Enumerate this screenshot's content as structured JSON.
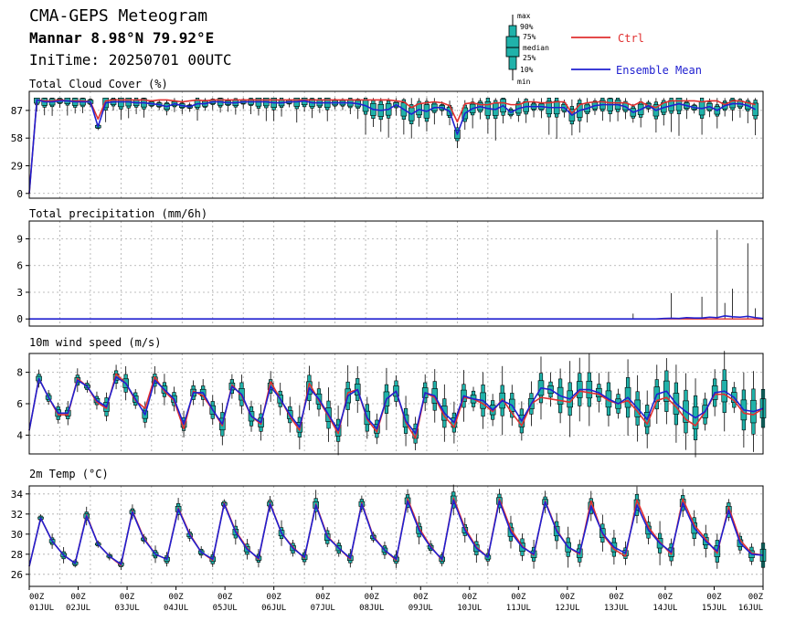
{
  "header": {
    "title": "CMA-GEPS Meteogram",
    "location": "Mannar 8.98°N 79.92°E",
    "init_time": "IniTime: 20250701 00UTC"
  },
  "legend": {
    "box_labels": [
      "max",
      "90%",
      "75%",
      "median",
      "25%",
      "10%",
      "min"
    ],
    "ctrl_label": "Ctrl",
    "ctrl_color": "#e03030",
    "mean_label": "Ensemble Mean",
    "mean_color": "#2020d0",
    "box_color": "#20b2aa"
  },
  "x_axis": {
    "hour_label": "00Z",
    "dates": [
      "01JUL",
      "02JUL",
      "03JUL",
      "04JUL",
      "05JUL",
      "06JUL",
      "07JUL",
      "08JUL",
      "09JUL",
      "10JUL",
      "11JUL",
      "12JUL",
      "13JUL",
      "14JUL",
      "15JUL",
      "16JUL"
    ]
  },
  "chart_data": [
    {
      "type": "line",
      "title": "Total Cloud Cover (%)",
      "ylim": [
        -5,
        107
      ],
      "yticks": [
        0,
        29,
        58,
        87
      ],
      "x_step_hours": 6,
      "ctrl": [
        0,
        98,
        97,
        97,
        98,
        97,
        97,
        97,
        96,
        78,
        97,
        98,
        98,
        98,
        98,
        98,
        97,
        98,
        98,
        97,
        96,
        97,
        98,
        97,
        98,
        98,
        98,
        98,
        98,
        98,
        98,
        98,
        98,
        98,
        98,
        98,
        98,
        98,
        98,
        98,
        98,
        98,
        98,
        98,
        98,
        98,
        98,
        98,
        97,
        96,
        90,
        94,
        95,
        96,
        95,
        92,
        75,
        94,
        95,
        93,
        93,
        95,
        95,
        93,
        93,
        96,
        96,
        95,
        95,
        96,
        96,
        84,
        93,
        95,
        96,
        96,
        95,
        95,
        95,
        92,
        96,
        92,
        90,
        95,
        97,
        97,
        97,
        97,
        96,
        97,
        97,
        93,
        97,
        97,
        95,
        93
      ],
      "mean": [
        0,
        98,
        96,
        96,
        97,
        97,
        96,
        96,
        96,
        70,
        95,
        96,
        96,
        96,
        95,
        95,
        94,
        93,
        91,
        94,
        92,
        91,
        94,
        94,
        96,
        96,
        95,
        95,
        96,
        96,
        96,
        96,
        95,
        95,
        96,
        96,
        97,
        95,
        95,
        95,
        95,
        95,
        95,
        94,
        92,
        88,
        87,
        88,
        93,
        88,
        83,
        88,
        86,
        90,
        90,
        86,
        62,
        84,
        89,
        91,
        89,
        88,
        92,
        85,
        89,
        91,
        91,
        91,
        90,
        90,
        90,
        82,
        87,
        89,
        92,
        93,
        93,
        93,
        91,
        85,
        88,
        92,
        87,
        90,
        92,
        94,
        92,
        90,
        89,
        91,
        87,
        92,
        94,
        94,
        92,
        88
      ]
    },
    {
      "type": "line",
      "title": "Total precipitation (mm/6h)",
      "ylim": [
        -0.8,
        11
      ],
      "yticks": [
        0,
        3,
        6,
        9
      ],
      "x_step_hours": 6,
      "ctrl_flat": 0,
      "mean_flat": 0,
      "late_mean_points": [
        [
          82,
          0
        ],
        [
          83,
          0.05
        ],
        [
          84,
          0.08
        ],
        [
          85,
          0.05
        ],
        [
          86,
          0.15
        ],
        [
          87,
          0.1
        ],
        [
          88,
          0.1
        ],
        [
          89,
          0.2
        ],
        [
          90,
          0.15
        ],
        [
          91,
          0.35
        ],
        [
          92,
          0.25
        ],
        [
          93,
          0.2
        ],
        [
          94,
          0.3
        ],
        [
          95,
          0.15
        ],
        [
          96,
          0.05
        ]
      ],
      "spikes": [
        [
          79,
          0.6
        ],
        [
          84,
          2.9
        ],
        [
          88,
          2.5
        ],
        [
          90,
          10.0
        ],
        [
          91,
          1.8
        ],
        [
          92,
          3.4
        ],
        [
          94,
          8.5
        ],
        [
          95,
          1.2
        ]
      ]
    },
    {
      "type": "line",
      "title": "10m wind speed (m/s)",
      "ylim": [
        2.8,
        9.2
      ],
      "yticks": [
        4,
        6,
        8
      ],
      "x_step_hours": 6,
      "ctrl": [
        4.3,
        7.6,
        6.4,
        5.3,
        5.3,
        7.6,
        7.1,
        6.1,
        5.7,
        7.9,
        7.3,
        6.2,
        5.7,
        7.7,
        6.8,
        6.2,
        4.4,
        6.8,
        6.5,
        5.6,
        4.6,
        7.2,
        6.5,
        5.2,
        4.7,
        7.4,
        6.3,
        5.2,
        4.3,
        7.3,
        6.2,
        5.2,
        4.1,
        6.7,
        6.9,
        5.0,
        4.2,
        6.3,
        6.8,
        4.8,
        3.8,
        6.7,
        6.4,
        5.2,
        4.5,
        6.4,
        6.3,
        6.0,
        5.5,
        6.3,
        5.4,
        4.6,
        6.0,
        6.4,
        6.3,
        6.2,
        6.1,
        6.8,
        6.7,
        6.6,
        6.2,
        6.0,
        6.2,
        5.5,
        4.7,
        6.2,
        6.4,
        5.8,
        5.0,
        4.6,
        5.5,
        6.6,
        6.6,
        6.2,
        5.4,
        5.3,
        5.7
      ],
      "mean": [
        4.3,
        7.6,
        6.4,
        5.4,
        5.4,
        7.5,
        7.1,
        6.2,
        5.8,
        7.7,
        7.3,
        6.3,
        5.3,
        7.5,
        6.9,
        6.3,
        4.7,
        6.7,
        6.7,
        5.6,
        4.7,
        7.1,
        6.6,
        5.2,
        4.8,
        7.1,
        6.3,
        5.3,
        4.5,
        7.0,
        6.3,
        5.3,
        4.3,
        6.5,
        6.9,
        5.1,
        4.4,
        6.3,
        6.8,
        4.9,
        4.1,
        6.7,
        6.5,
        5.4,
        4.8,
        6.5,
        6.3,
        6.2,
        5.6,
        6.2,
        5.9,
        4.9,
        6.0,
        7.0,
        6.9,
        6.5,
        6.3,
        6.9,
        6.9,
        6.7,
        6.3,
        6.0,
        6.4,
        5.7,
        5.0,
        6.6,
        6.8,
        6.0,
        5.5,
        5.1,
        5.5,
        6.7,
        6.8,
        6.4,
        5.6,
        5.5,
        5.7
      ]
    },
    {
      "type": "line",
      "title": "2m Temp (°C)",
      "ylim": [
        24.8,
        34.8
      ],
      "yticks": [
        26,
        28,
        30,
        32,
        34
      ],
      "x_step_hours": 6,
      "ctrl": [
        26.8,
        31.6,
        29.3,
        27.9,
        27.1,
        31.9,
        29.0,
        27.8,
        26.9,
        32.3,
        29.6,
        28.0,
        27.5,
        32.6,
        30.0,
        28.2,
        27.4,
        33.1,
        30.3,
        28.6,
        27.5,
        33.1,
        30.1,
        28.7,
        27.6,
        33.0,
        29.8,
        28.6,
        27.5,
        33.1,
        29.8,
        28.4,
        27.4,
        33.5,
        30.6,
        28.8,
        27.4,
        33.6,
        30.6,
        28.7,
        27.7,
        33.5,
        30.5,
        28.8,
        27.9,
        33.3,
        30.4,
        28.7,
        28.0,
        33.3,
        30.0,
        28.5,
        27.8,
        33.4,
        30.7,
        29.2,
        28.0,
        33.5,
        30.9,
        29.5,
        28.1,
        32.7,
        29.4,
        28.1,
        27.9
      ],
      "mean": [
        26.8,
        31.6,
        29.3,
        27.9,
        27.1,
        31.8,
        29.0,
        27.8,
        27.0,
        32.2,
        29.5,
        28.0,
        27.5,
        32.5,
        29.9,
        28.2,
        27.5,
        33.0,
        30.2,
        28.5,
        27.6,
        33.0,
        30.1,
        28.6,
        27.7,
        32.9,
        29.7,
        28.6,
        27.6,
        33.0,
        29.7,
        28.4,
        27.5,
        33.3,
        30.4,
        28.7,
        27.5,
        33.4,
        30.4,
        28.6,
        27.7,
        33.3,
        30.2,
        28.7,
        28.0,
        33.2,
        30.3,
        28.7,
        28.1,
        32.8,
        30.1,
        28.7,
        28.1,
        32.9,
        30.4,
        29.1,
        28.2,
        33.1,
        30.6,
        29.3,
        28.3,
        32.4,
        29.1,
        28.0,
        27.9
      ]
    }
  ]
}
